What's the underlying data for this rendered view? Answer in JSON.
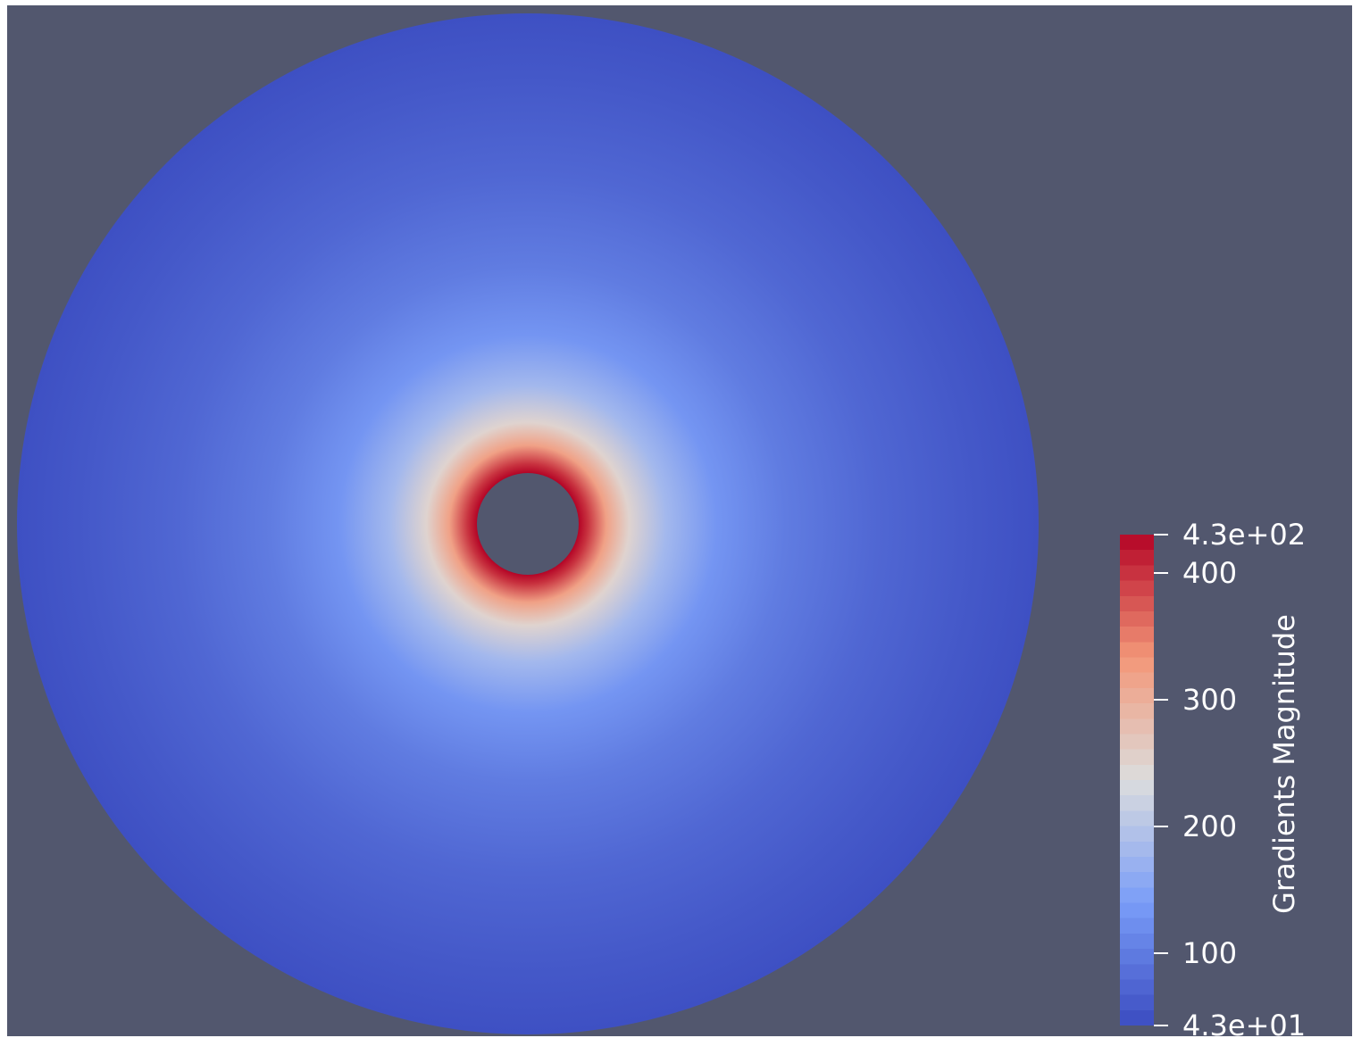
{
  "scene": {
    "background_color": "#52576e",
    "field_name": "Gradients Magnitude",
    "data_range": [
      43,
      430
    ],
    "colormap_name": "Cool to Warm",
    "colormap_stops": [
      {
        "value": 0.0,
        "color": "#3b4cc0"
      },
      {
        "value": 0.25,
        "color": "#7a9df8"
      },
      {
        "value": 0.5,
        "color": "#dcdddd"
      },
      {
        "value": 0.75,
        "color": "#f39778"
      },
      {
        "value": 1.0,
        "color": "#b40426"
      }
    ],
    "annulus_radial_profile": [
      {
        "r_fraction": 0.0,
        "value": 430
      },
      {
        "r_fraction": 0.02,
        "value": 400
      },
      {
        "r_fraction": 0.06,
        "value": 320
      },
      {
        "r_fraction": 0.11,
        "value": 250
      },
      {
        "r_fraction": 0.19,
        "value": 180
      },
      {
        "r_fraction": 0.3,
        "value": 130
      },
      {
        "r_fraction": 0.45,
        "value": 100
      },
      {
        "r_fraction": 0.65,
        "value": 75
      },
      {
        "r_fraction": 0.85,
        "value": 58
      },
      {
        "r_fraction": 1.0,
        "value": 48
      }
    ]
  },
  "colorbar": {
    "title": "Gradients Magnitude",
    "ticks": [
      {
        "value": 430,
        "label": "4.3e+02"
      },
      {
        "value": 400,
        "label": "400"
      },
      {
        "value": 300,
        "label": "300"
      },
      {
        "value": 200,
        "label": "200"
      },
      {
        "value": 100,
        "label": "100"
      },
      {
        "value": 43,
        "label": "4.3e+01"
      }
    ]
  }
}
